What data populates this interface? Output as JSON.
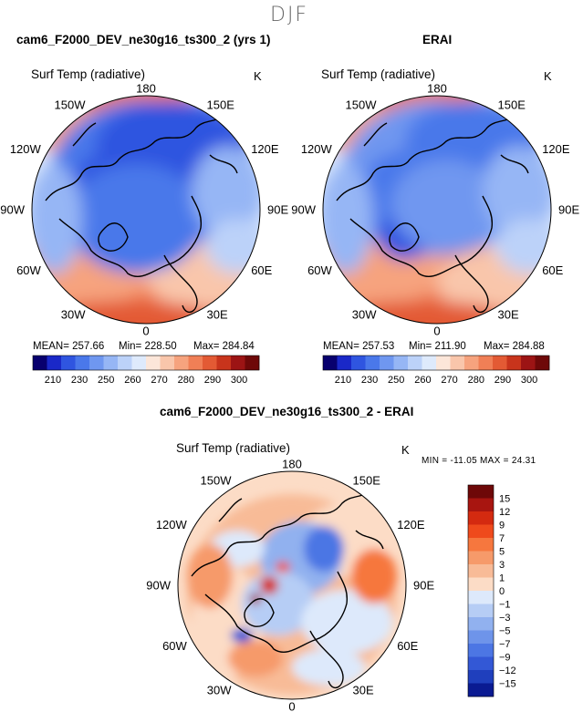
{
  "season": "DJF",
  "panels": [
    {
      "title": "cam6_F2000_DEV_ne30g16_ts300_2 (yrs 1)",
      "variable": "Surf Temp (radiative)",
      "units": "K",
      "mean_text": "MEAN= 257.66",
      "min_text": "Min= 228.50",
      "max_text": "Max= 284.84"
    },
    {
      "title": "ERAI",
      "variable": "Surf Temp (radiative)",
      "units": "K",
      "mean_text": "MEAN= 257.53",
      "min_text": "Min= 211.90",
      "max_text": "Max= 284.88"
    }
  ],
  "diff_panel": {
    "title": "cam6_F2000_DEV_ne30g16_ts300_2 - ERAI",
    "variable": "Surf Temp (radiative)",
    "units": "K",
    "stats_text": "MIN = -11.05 MAX =  24.31"
  },
  "lon_labels": [
    "180",
    "150E",
    "120E",
    "90E",
    "60E",
    "30E",
    "0",
    "30W",
    "60W",
    "90W",
    "120W",
    "150W"
  ],
  "abs_colorbar": {
    "colors": [
      "#08006e",
      "#1a28c8",
      "#2f55e0",
      "#4a78ea",
      "#6f97f0",
      "#96b6f5",
      "#bcd2f9",
      "#deeafc",
      "#fce6d9",
      "#f9c6ab",
      "#f6a37e",
      "#f07f56",
      "#e35a34",
      "#c8341c",
      "#9c1414",
      "#6e0808"
    ],
    "labels": [
      "210",
      "230",
      "250",
      "260",
      "270",
      "280",
      "290",
      "300"
    ]
  },
  "diff_colorbar": {
    "colors": [
      "#6e0808",
      "#a81510",
      "#d42a10",
      "#ef4a1c",
      "#f6773e",
      "#f69a6a",
      "#f8bb97",
      "#fcdcc6",
      "#dde9fb",
      "#b6cdf5",
      "#91b1ef",
      "#6e94ea",
      "#4c76e4",
      "#3358d6",
      "#1f3fbd",
      "#0a1a92"
    ],
    "labels": [
      "15",
      "12",
      "9",
      "7",
      "5",
      "3",
      "1",
      "0",
      "−1",
      "−3",
      "−5",
      "−7",
      "−9",
      "−12",
      "−15"
    ]
  }
}
